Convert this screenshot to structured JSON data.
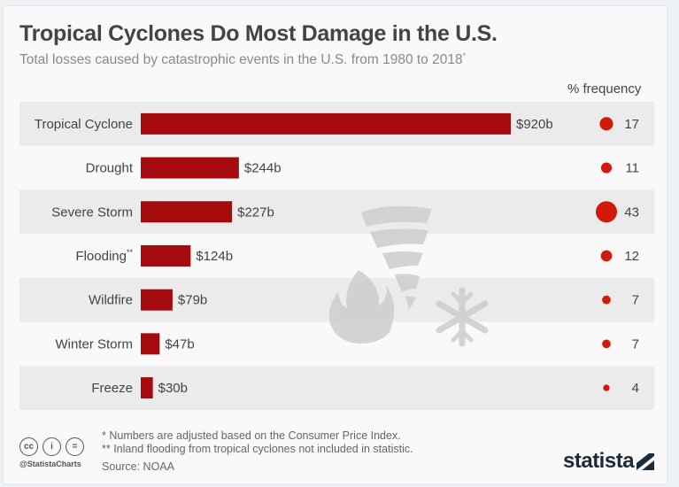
{
  "title": "Tropical Cyclones Do Most Damage in the U.S.",
  "subtitle": "Total losses caused by catastrophic events in the U.S. from 1980 to 2018",
  "subtitle_mark": "*",
  "frequency_header": "% frequency",
  "colors": {
    "bar": "#a50a0f",
    "dot": "#d21a0c",
    "row_shade": "#ebebeb",
    "icons": "#cfcfcf"
  },
  "icons": [
    "tornado-icon",
    "fire-icon",
    "snowflake-icon"
  ],
  "chart_data": {
    "type": "bar",
    "orientation": "horizontal",
    "categories": [
      "Tropical Cyclone",
      "Drought",
      "Severe Storm",
      "Flooding",
      "Wildfire",
      "Winter Storm",
      "Freeze"
    ],
    "category_marks": [
      "",
      "",
      "",
      "**",
      "",
      "",
      ""
    ],
    "values": [
      920,
      244,
      227,
      124,
      79,
      47,
      30
    ],
    "value_labels": [
      "$920b",
      "$244b",
      "$227b",
      "$124b",
      "$79b",
      "$47b",
      "$30b"
    ],
    "unit": "billion USD",
    "frequency": [
      17,
      11,
      43,
      12,
      7,
      7,
      4
    ],
    "xlim": [
      0,
      920
    ],
    "grid": false
  },
  "footnotes": [
    "*   Numbers are adjusted based on the Consumer Price Index.",
    "** Inland flooding from tropical cyclones not included in statistic."
  ],
  "source": "Source: NOAA",
  "handle": "@StatistaCharts",
  "license_icons": [
    "cc-icon",
    "attribution-icon",
    "no-derivatives-icon"
  ],
  "license_glyphs": [
    "cc",
    "i",
    "="
  ],
  "brand": "statista"
}
